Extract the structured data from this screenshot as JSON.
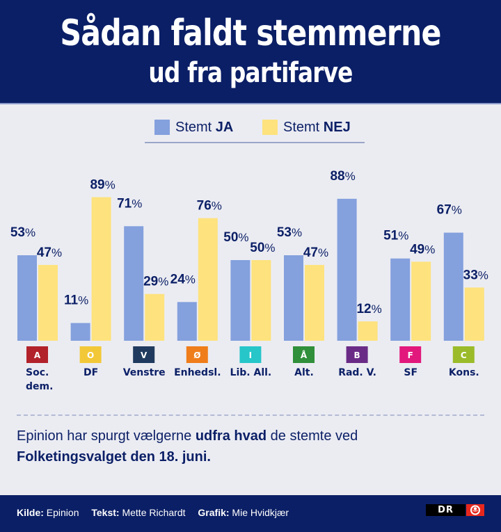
{
  "header": {
    "title_line1": "Sådan faldt stemmerne",
    "title_line2": "ud fra partifarve"
  },
  "legend": {
    "ja_prefix": "Stemt ",
    "ja_bold": "JA",
    "nej_prefix": "Stemt ",
    "nej_bold": "NEJ",
    "ja_color": "#84a0dd",
    "nej_color": "#fde27e"
  },
  "chart_data": {
    "type": "bar",
    "title": "Sådan faldt stemmerne ud fra partifarve",
    "xlabel": "",
    "ylabel": "",
    "ylim": [
      0,
      100
    ],
    "grid": false,
    "legend_position": "top-center",
    "categories": [
      "Soc. dem.",
      "DF",
      "Venstre",
      "Enhedsl.",
      "Lib. All.",
      "Alt.",
      "Rad. V.",
      "SF",
      "Kons."
    ],
    "party_letters": [
      "A",
      "O",
      "V",
      "Ø",
      "I",
      "Å",
      "B",
      "F",
      "C"
    ],
    "party_colors": [
      "#b2222a",
      "#f2c838",
      "#1f3a5e",
      "#ef7d1a",
      "#26c6c9",
      "#2f8f3a",
      "#6a2b86",
      "#e2187d",
      "#9bbb2a"
    ],
    "category_lines": [
      [
        "Soc.",
        "dem."
      ],
      [
        "DF"
      ],
      [
        "Venstre"
      ],
      [
        "Enhedsl."
      ],
      [
        "Lib. All."
      ],
      [
        "Alt."
      ],
      [
        "Rad. V."
      ],
      [
        "SF"
      ],
      [
        "Kons."
      ]
    ],
    "series": [
      {
        "name": "Stemt JA",
        "color": "#84a0dd",
        "values": [
          53,
          11,
          71,
          24,
          50,
          53,
          88,
          51,
          67
        ]
      },
      {
        "name": "Stemt NEJ",
        "color": "#fde27e",
        "values": [
          47,
          89,
          29,
          76,
          50,
          47,
          12,
          49,
          33
        ]
      }
    ],
    "value_suffix": "%"
  },
  "note": {
    "part1": "Epinion har spurgt vælgerne ",
    "bold1": "udfra hvad",
    "part2": " de stemte ved",
    "bold2": "Folketingsvalget den 18. juni."
  },
  "footer": {
    "source_label": "Kilde:",
    "source_value": " Epinion",
    "text_label": "Tekst:",
    "text_value": " Mette Richardt",
    "graphic_label": "Grafik:",
    "graphic_value": " Mie Hvidkjær",
    "logo_text": "DR"
  }
}
